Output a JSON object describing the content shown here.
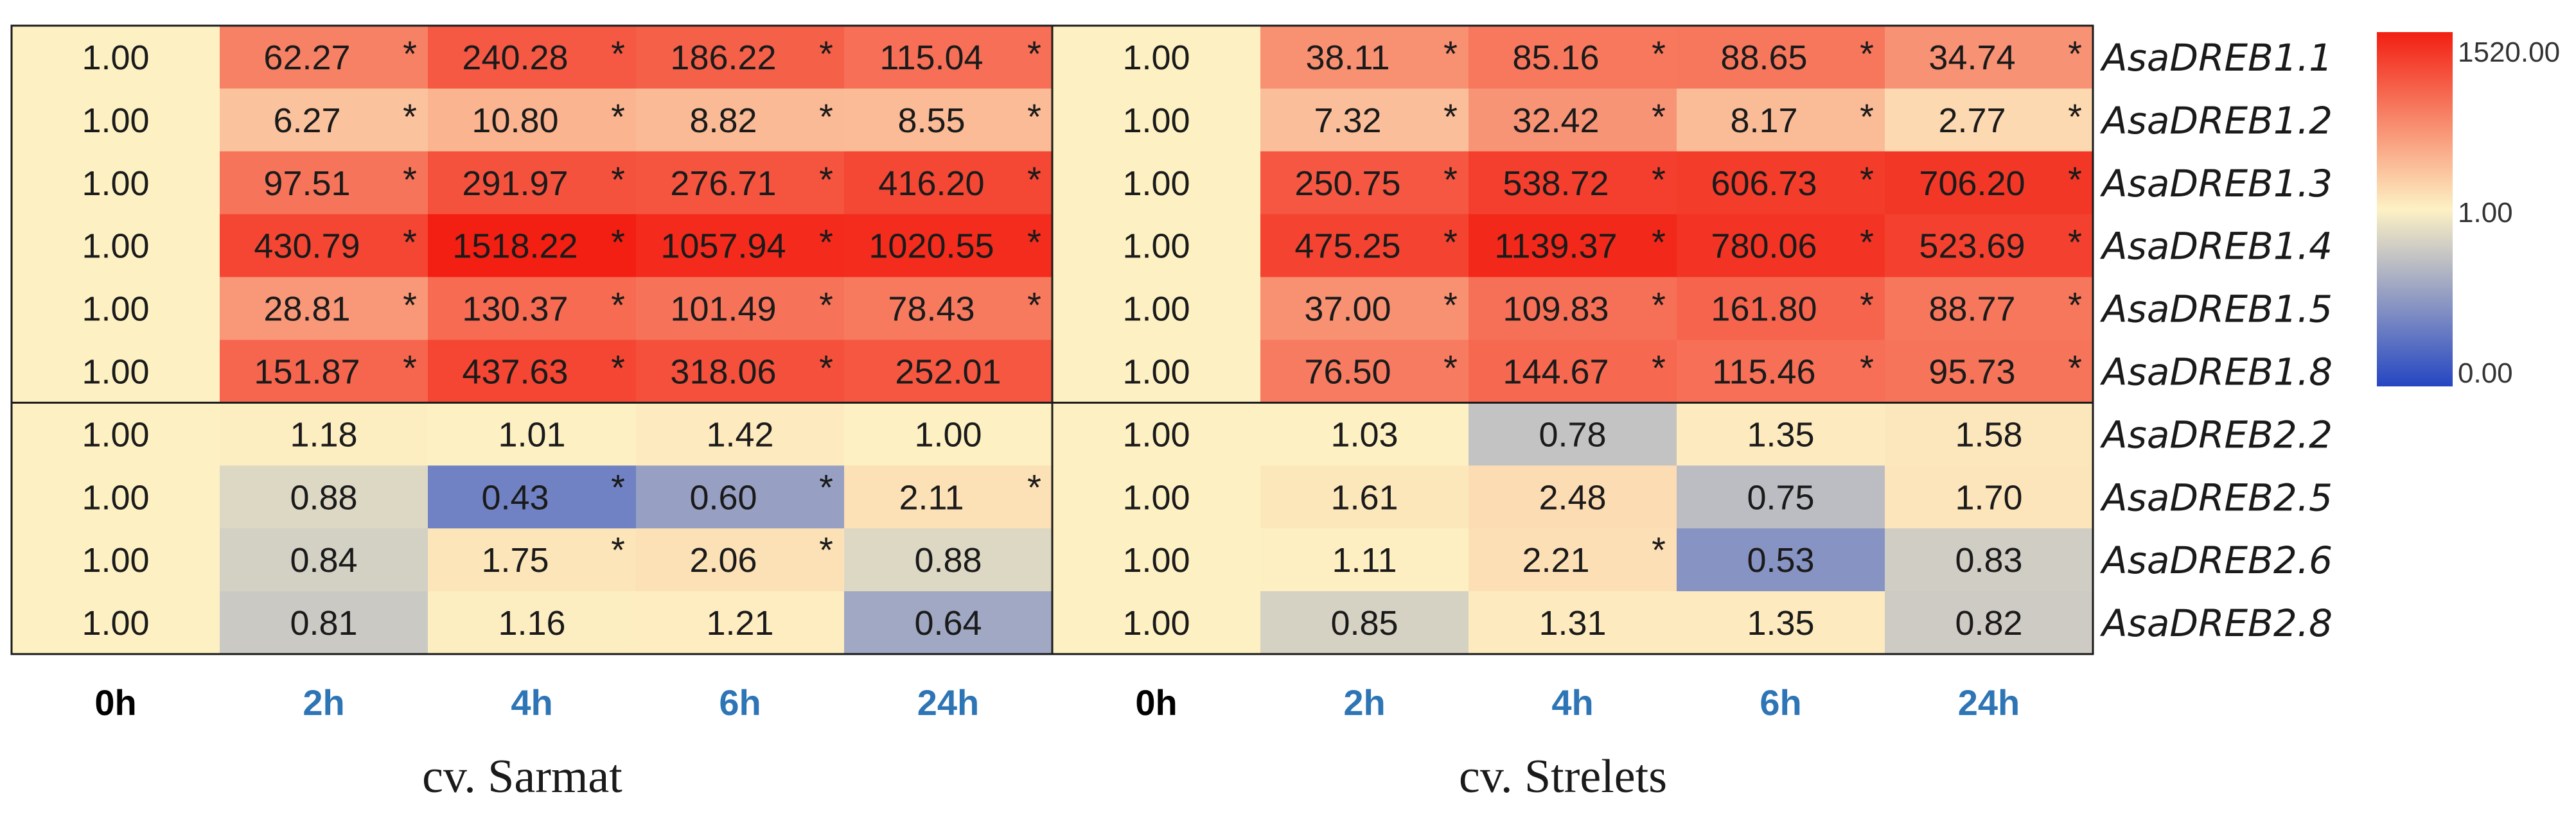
{
  "chart_data": {
    "type": "heatmap",
    "genes": [
      "AsaDREB1.1",
      "AsaDREB1.2",
      "AsaDREB1.3",
      "AsaDREB1.4",
      "AsaDREB1.5",
      "AsaDREB1.8",
      "AsaDREB2.2",
      "AsaDREB2.5",
      "AsaDREB2.6",
      "AsaDREB2.8"
    ],
    "timepoints": [
      "0h",
      "2h",
      "4h",
      "6h",
      "24h"
    ],
    "color_scale": {
      "min": 0.0,
      "mid": 1.0,
      "max": 1520.0,
      "min_label": "0.00",
      "mid_label": "1.00",
      "max_label": "1520.00",
      "colors": [
        "#2546c2",
        "#fdf1c4",
        "#f21f12"
      ]
    },
    "time_colors": {
      "baseline": "#000000",
      "treated": "#2e75b6"
    },
    "panels": [
      {
        "cultivar": "cv. Sarmat",
        "values": [
          [
            "1.00",
            "62.27",
            "240.28",
            "186.22",
            "115.04"
          ],
          [
            "1.00",
            "6.27",
            "10.80",
            "8.82",
            "8.55"
          ],
          [
            "1.00",
            "97.51",
            "291.97",
            "276.71",
            "416.20"
          ],
          [
            "1.00",
            "430.79",
            "1518.22",
            "1057.94",
            "1020.55"
          ],
          [
            "1.00",
            "28.81",
            "130.37",
            "101.49",
            "78.43"
          ],
          [
            "1.00",
            "151.87",
            "437.63",
            "318.06",
            "252.01"
          ],
          [
            "1.00",
            "1.18",
            "1.01",
            "1.42",
            "1.00"
          ],
          [
            "1.00",
            "0.88",
            "0.43",
            "0.60",
            "2.11"
          ],
          [
            "1.00",
            "0.84",
            "1.75",
            "2.06",
            "0.88"
          ],
          [
            "1.00",
            "0.81",
            "1.16",
            "1.21",
            "0.64"
          ]
        ],
        "significant": [
          [
            false,
            true,
            true,
            true,
            true
          ],
          [
            false,
            true,
            true,
            true,
            true
          ],
          [
            false,
            true,
            true,
            true,
            true
          ],
          [
            false,
            true,
            true,
            true,
            true
          ],
          [
            false,
            true,
            true,
            true,
            true
          ],
          [
            false,
            true,
            true,
            true,
            false
          ],
          [
            false,
            false,
            false,
            false,
            false
          ],
          [
            false,
            false,
            true,
            true,
            true
          ],
          [
            false,
            false,
            true,
            true,
            false
          ],
          [
            false,
            false,
            false,
            false,
            false
          ]
        ]
      },
      {
        "cultivar": "cv. Strelets",
        "values": [
          [
            "1.00",
            "38.11",
            "85.16",
            "88.65",
            "34.74"
          ],
          [
            "1.00",
            "7.32",
            "32.42",
            "8.17",
            "2.77"
          ],
          [
            "1.00",
            "250.75",
            "538.72",
            "606.73",
            "706.20"
          ],
          [
            "1.00",
            "475.25",
            "1139.37",
            "780.06",
            "523.69"
          ],
          [
            "1.00",
            "37.00",
            "109.83",
            "161.80",
            "88.77"
          ],
          [
            "1.00",
            "76.50",
            "144.67",
            "115.46",
            "95.73"
          ],
          [
            "1.00",
            "1.03",
            "0.78",
            "1.35",
            "1.58"
          ],
          [
            "1.00",
            "1.61",
            "2.48",
            "0.75",
            "1.70"
          ],
          [
            "1.00",
            "1.11",
            "2.21",
            "0.53",
            "0.83"
          ],
          [
            "1.00",
            "0.85",
            "1.31",
            "1.35",
            "0.82"
          ]
        ],
        "significant": [
          [
            false,
            true,
            true,
            true,
            true
          ],
          [
            false,
            true,
            true,
            true,
            true
          ],
          [
            false,
            true,
            true,
            true,
            true
          ],
          [
            false,
            true,
            true,
            true,
            true
          ],
          [
            false,
            true,
            true,
            true,
            true
          ],
          [
            false,
            true,
            true,
            true,
            true
          ],
          [
            false,
            false,
            false,
            false,
            false
          ],
          [
            false,
            false,
            false,
            false,
            false
          ],
          [
            false,
            false,
            true,
            false,
            false
          ],
          [
            false,
            false,
            false,
            false,
            false
          ]
        ]
      }
    ]
  }
}
